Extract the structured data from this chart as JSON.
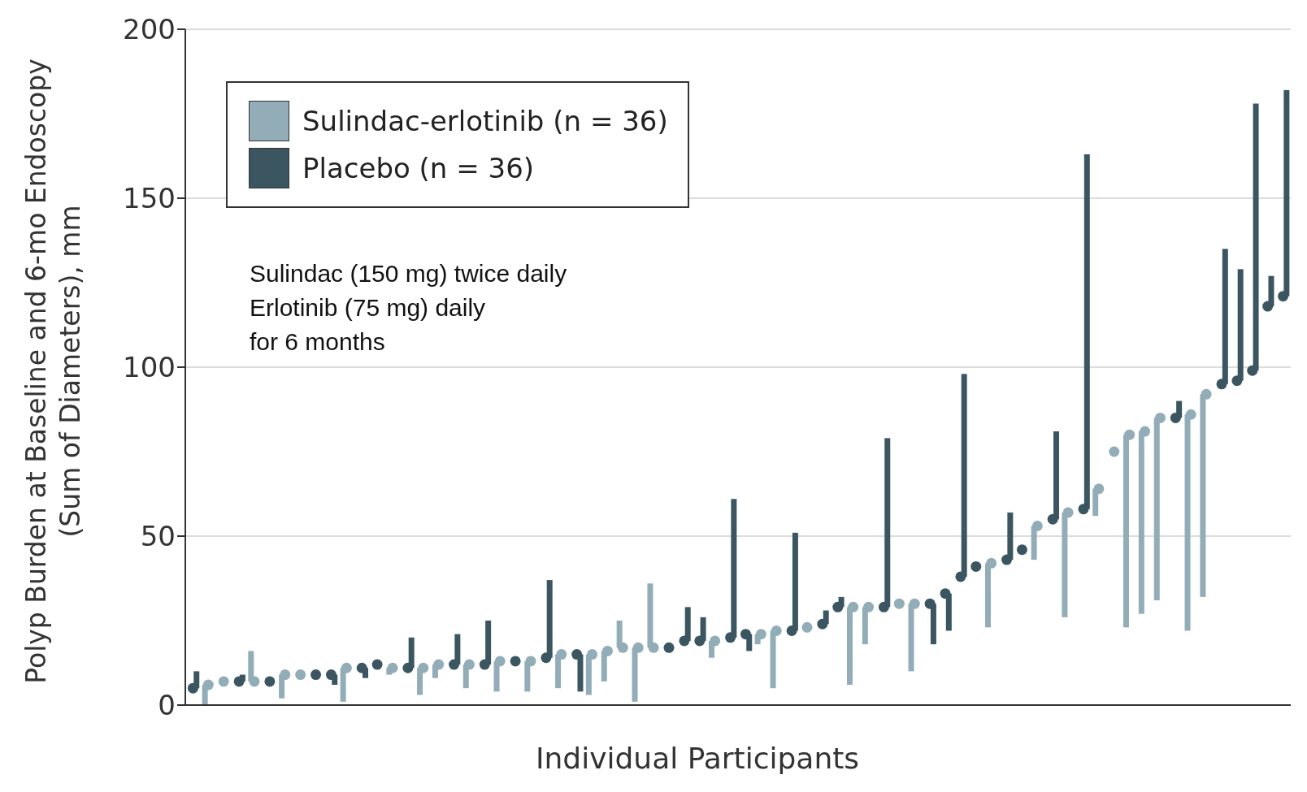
{
  "chart_data": {
    "type": "bar",
    "xlabel": "Individual Participants",
    "ylabel": "Polyp Burden at Baseline and 6-mo Endoscopy (Sum of Diameters), mm",
    "categories": [
      null,
      null,
      null,
      null,
      null,
      null,
      null,
      null,
      null,
      null,
      null,
      null,
      null,
      null,
      null,
      null,
      null,
      null,
      null,
      null,
      null,
      null,
      null,
      null,
      null,
      null,
      null,
      null,
      null,
      null,
      null,
      null,
      null,
      null,
      null,
      null,
      null,
      null,
      null,
      null,
      null,
      null,
      null,
      null,
      null,
      null,
      null,
      null,
      null,
      null,
      null,
      null,
      null,
      null,
      null,
      null,
      null,
      null,
      null,
      null,
      null,
      null,
      null,
      null,
      null,
      null,
      null,
      null,
      null,
      null,
      null,
      null
    ],
    "series": [
      {
        "name": "Sulindac-erlotinib (n = 36)",
        "color": "#93adb8",
        "base": [
          null,
          6,
          null,
          null,
          7,
          null,
          9,
          null,
          null,
          null,
          11,
          null,
          null,
          11,
          null,
          11,
          12,
          null,
          12,
          null,
          13,
          null,
          13,
          null,
          15,
          null,
          15,
          16,
          17,
          17,
          17,
          null,
          null,
          null,
          19,
          null,
          null,
          21,
          22,
          null,
          null,
          null,
          null,
          29,
          29,
          null,
          null,
          30,
          null,
          null,
          null,
          null,
          42,
          null,
          null,
          53,
          null,
          57,
          null,
          64,
          null,
          80,
          81,
          85,
          null,
          86,
          92,
          null,
          null,
          null,
          null,
          null
        ],
        "values": [
          null,
          -6,
          null,
          null,
          9,
          null,
          -7,
          null,
          null,
          null,
          -10,
          null,
          null,
          -2,
          null,
          -8,
          -4,
          null,
          -7,
          null,
          -9,
          null,
          -9,
          null,
          -10,
          null,
          -12,
          -9,
          8,
          -16,
          19,
          null,
          null,
          null,
          -5,
          null,
          null,
          -3,
          -17,
          null,
          null,
          null,
          null,
          -23,
          -11,
          null,
          null,
          -20,
          null,
          null,
          null,
          null,
          -19,
          null,
          null,
          -10,
          null,
          -31,
          null,
          -8,
          null,
          -57,
          -54,
          -54,
          null,
          -64,
          -60,
          null,
          null,
          null,
          null,
          null
        ]
      },
      {
        "name": "Placebo (n = 36)",
        "color": "#3b5661",
        "base": [
          5,
          null,
          null,
          7,
          null,
          null,
          null,
          null,
          null,
          9,
          null,
          11,
          null,
          null,
          11,
          null,
          null,
          12,
          null,
          12,
          null,
          null,
          null,
          14,
          null,
          15,
          null,
          null,
          null,
          null,
          null,
          null,
          19,
          19,
          null,
          20,
          21,
          null,
          null,
          22,
          null,
          24,
          29,
          null,
          null,
          29,
          null,
          null,
          30,
          33,
          38,
          null,
          null,
          43,
          null,
          null,
          55,
          null,
          58,
          null,
          null,
          null,
          null,
          null,
          85,
          null,
          null,
          95,
          96,
          99,
          118,
          121
        ],
        "values": [
          5,
          null,
          null,
          2,
          null,
          null,
          null,
          null,
          null,
          -3,
          null,
          -3,
          null,
          null,
          9,
          null,
          null,
          9,
          null,
          13,
          null,
          null,
          null,
          23,
          null,
          -11,
          null,
          null,
          null,
          null,
          null,
          null,
          10,
          7,
          null,
          41,
          -5,
          null,
          null,
          29,
          null,
          4,
          3,
          null,
          null,
          50,
          null,
          null,
          -12,
          -11,
          60,
          null,
          null,
          14,
          null,
          null,
          26,
          null,
          105,
          null,
          null,
          null,
          null,
          null,
          5,
          null,
          null,
          40,
          33,
          79,
          9,
          61
        ]
      },
      {
        "type": "scatter",
        "color": "#93adb8",
        "values": [
          null,
          6,
          7,
          null,
          7,
          null,
          9,
          9,
          null,
          null,
          11,
          null,
          null,
          11,
          null,
          11,
          12,
          null,
          12,
          null,
          13,
          null,
          13,
          null,
          15,
          null,
          15,
          16,
          17,
          17,
          17,
          null,
          null,
          null,
          19,
          null,
          null,
          21,
          22,
          null,
          23,
          null,
          null,
          29,
          29,
          null,
          30,
          30,
          null,
          null,
          null,
          null,
          42,
          null,
          null,
          53,
          null,
          57,
          null,
          64,
          75,
          80,
          81,
          85,
          null,
          86,
          92,
          null,
          null,
          null,
          null,
          null
        ]
      },
      {
        "type": "scatter",
        "color": "#3b5661",
        "values": [
          5,
          null,
          null,
          7,
          null,
          7,
          null,
          null,
          9,
          9,
          null,
          11,
          12,
          null,
          11,
          null,
          null,
          12,
          null,
          12,
          null,
          13,
          null,
          14,
          null,
          15,
          null,
          null,
          null,
          null,
          null,
          17,
          19,
          19,
          null,
          20,
          21,
          null,
          null,
          22,
          null,
          24,
          29,
          null,
          null,
          29,
          null,
          null,
          30,
          33,
          38,
          41,
          null,
          43,
          46,
          null,
          55,
          null,
          58,
          null,
          null,
          null,
          null,
          null,
          85,
          null,
          null,
          95,
          96,
          99,
          118,
          121
        ]
      }
    ],
    "marker": "circle",
    "ylim": [
      0,
      200
    ],
    "yticks": [
      0,
      50,
      100,
      150,
      200
    ],
    "grid": "y",
    "legend": "top left",
    "tick_labels": "y",
    "annotations": [
      "Sulindac (150 mg) twice daily",
      "Erlotinib (75 mg) daily",
      "for 6 months"
    ]
  }
}
